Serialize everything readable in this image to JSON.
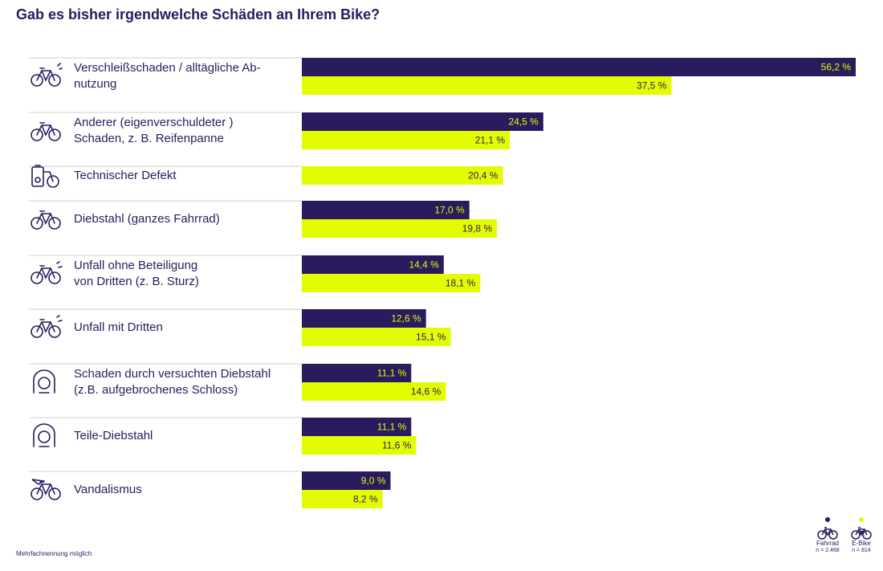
{
  "chart_data": {
    "type": "bar",
    "orientation": "horizontal",
    "title": "Gab es bisher irgendwelche Schäden an Ihrem Bike?",
    "categories": [
      "Verschleißschaden / alltägliche Ab-\nnutzung",
      "Anderer (eigenverschuldeter )\nSchaden, z. B. Reifenpanne",
      "Technischer Defekt",
      "Diebstahl (ganzes Fahrrad)",
      "Unfall ohne Beteiligung\nvon Dritten (z. B. Sturz)",
      "Unfall mit Dritten",
      "Schaden durch versuchten Diebstahl\n(z.B. aufgebrochenes Schloss)",
      "Teile-Diebstahl",
      "Vandalismus"
    ],
    "category_icons": [
      "worn-bike-icon",
      "flat-tire-bike-icon",
      "battery-defect-icon",
      "stolen-bike-icon",
      "fall-accident-icon",
      "collision-icon",
      "broken-lock-icon",
      "parts-theft-icon",
      "vandalism-icon"
    ],
    "series": [
      {
        "name": "Fahrrad",
        "n_label": "n = 2.468",
        "color": "#2a1a5e",
        "label_color": "#e3fc02",
        "values": [
          56.2,
          24.5,
          null,
          17.0,
          14.4,
          12.6,
          11.1,
          11.1,
          9.0
        ],
        "labels": [
          "56,2 %",
          "24,5 %",
          "",
          "17,0 %",
          "14,4 %",
          "12,6 %",
          "11,1 %",
          "11,1 %",
          "9,0 %"
        ]
      },
      {
        "name": "E-Bike",
        "n_label": "n = 814",
        "color": "#e3fc02",
        "label_color": "#2a1a5e",
        "values": [
          37.5,
          21.1,
          20.4,
          19.8,
          18.1,
          15.1,
          14.6,
          11.6,
          8.2
        ],
        "labels": [
          "37,5 %",
          "21,1 %",
          "20,4 %",
          "19,8 %",
          "18,1 %",
          "15,1 %",
          "14,6 %",
          "11,6 %",
          "8,2 %"
        ]
      }
    ],
    "unit": "%",
    "grid": false,
    "legend_position": "bottom-right"
  },
  "footnote": "Mehrfachnennung möglich",
  "colors": {
    "primary": "#2a1a5e",
    "accent": "#e3fc02",
    "divider": "#cfcfcf"
  }
}
